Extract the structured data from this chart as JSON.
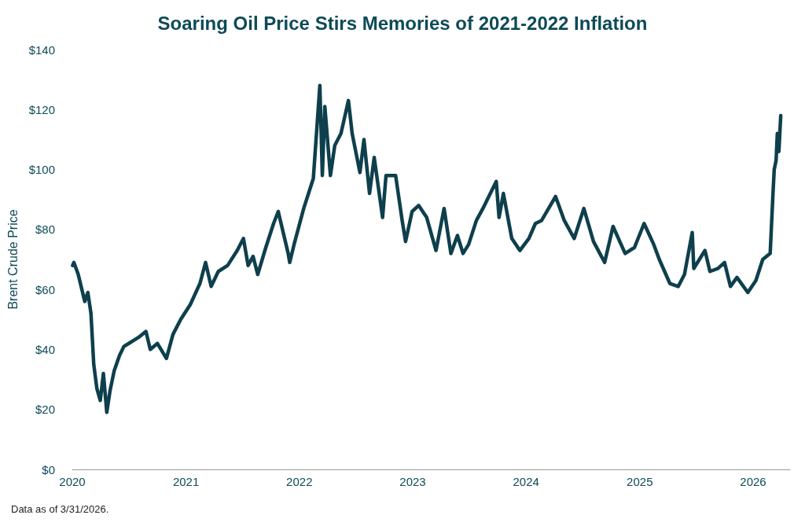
{
  "chart_data": {
    "type": "line",
    "title": "Soaring Oil Price Stirs Memories of 2021-2022 Inflation",
    "ylabel": "Brent Crude Price",
    "annotations": [
      "Data as of 3/31/2026."
    ],
    "x": [
      "2020-01-02",
      "2020-01-06",
      "2020-01-20",
      "2020-02-10",
      "2020-02-20",
      "2020-03-01",
      "2020-03-10",
      "2020-03-20",
      "2020-03-31",
      "2020-04-10",
      "2020-04-21",
      "2020-05-01",
      "2020-05-15",
      "2020-06-01",
      "2020-06-15",
      "2020-07-01",
      "2020-08-01",
      "2020-08-25",
      "2020-09-08",
      "2020-10-01",
      "2020-10-30",
      "2020-11-20",
      "2020-12-15",
      "2021-01-15",
      "2021-02-15",
      "2021-03-05",
      "2021-03-23",
      "2021-04-15",
      "2021-05-15",
      "2021-06-15",
      "2021-07-05",
      "2021-07-20",
      "2021-08-05",
      "2021-08-20",
      "2021-09-15",
      "2021-10-10",
      "2021-10-25",
      "2021-11-26",
      "2021-12-01",
      "2021-12-15",
      "2022-01-15",
      "2022-02-15",
      "2022-03-08",
      "2022-03-16",
      "2022-03-24",
      "2022-04-11",
      "2022-04-25",
      "2022-05-15",
      "2022-06-08",
      "2022-06-20",
      "2022-07-15",
      "2022-07-28",
      "2022-08-15",
      "2022-08-30",
      "2022-09-26",
      "2022-10-07",
      "2022-11-07",
      "2022-11-28",
      "2022-12-09",
      "2022-12-30",
      "2023-01-20",
      "2023-02-15",
      "2023-03-17",
      "2023-04-12",
      "2023-05-04",
      "2023-05-25",
      "2023-06-12",
      "2023-06-30",
      "2023-07-25",
      "2023-08-15",
      "2023-09-27",
      "2023-10-06",
      "2023-10-20",
      "2023-11-16",
      "2023-12-12",
      "2024-01-10",
      "2024-01-31",
      "2024-02-20",
      "2024-04-05",
      "2024-05-03",
      "2024-06-04",
      "2024-07-05",
      "2024-08-05",
      "2024-09-10",
      "2024-10-07",
      "2024-11-15",
      "2024-12-15",
      "2025-01-15",
      "2025-02-15",
      "2025-03-05",
      "2025-04-08",
      "2025-05-05",
      "2025-05-25",
      "2025-06-19",
      "2025-06-24",
      "2025-07-30",
      "2025-08-15",
      "2025-09-10",
      "2025-10-01",
      "2025-10-20",
      "2025-11-10",
      "2025-12-15",
      "2026-01-10",
      "2026-02-01",
      "2026-02-25",
      "2026-03-06",
      "2026-03-10",
      "2026-03-16",
      "2026-03-20",
      "2026-03-25",
      "2026-03-31"
    ],
    "series": [
      {
        "color": "#0e3f4c",
        "values": [
          68,
          69,
          65,
          56,
          59,
          52,
          35,
          27,
          23,
          32,
          19,
          26,
          33,
          38,
          41,
          42,
          44,
          46,
          40,
          42,
          37,
          45,
          50,
          55,
          62,
          69,
          61,
          66,
          68,
          73,
          77,
          68,
          71,
          65,
          74,
          82,
          86,
          72,
          69,
          75,
          87,
          97,
          128,
          98,
          121,
          98,
          108,
          112,
          123,
          112,
          99,
          110,
          92,
          104,
          84,
          98,
          98,
          83,
          76,
          86,
          88,
          84,
          73,
          87,
          72,
          78,
          72,
          75,
          83,
          87,
          96,
          84,
          92,
          77,
          73,
          77,
          82,
          83,
          91,
          83,
          77,
          87,
          76,
          69,
          81,
          72,
          74,
          82,
          75,
          70,
          62,
          61,
          65,
          79,
          67,
          73,
          66,
          67,
          69,
          61,
          64,
          59,
          63,
          70,
          72,
          92,
          100,
          103,
          112,
          106,
          118
        ]
      }
    ],
    "xlim": [
      "2020-01-01",
      "2026-04-30"
    ],
    "xticks": [
      {
        "value": "2020-01-01",
        "label": "2020"
      },
      {
        "value": "2021-01-01",
        "label": "2021"
      },
      {
        "value": "2022-01-01",
        "label": "2022"
      },
      {
        "value": "2023-01-01",
        "label": "2023"
      },
      {
        "value": "2024-01-01",
        "label": "2024"
      },
      {
        "value": "2025-01-01",
        "label": "2025"
      },
      {
        "value": "2026-01-01",
        "label": "2026"
      }
    ],
    "ylim": [
      0,
      140
    ],
    "yticks": [
      {
        "value": 0,
        "label": "$0"
      },
      {
        "value": 20,
        "label": "$20"
      },
      {
        "value": 40,
        "label": "$40"
      },
      {
        "value": 60,
        "label": "$60"
      },
      {
        "value": 80,
        "label": "$80"
      },
      {
        "value": 100,
        "label": "$100"
      },
      {
        "value": 120,
        "label": "$120"
      },
      {
        "value": 140,
        "label": "$140"
      }
    ],
    "grid": false,
    "marker": "none",
    "line_style": "solid"
  }
}
